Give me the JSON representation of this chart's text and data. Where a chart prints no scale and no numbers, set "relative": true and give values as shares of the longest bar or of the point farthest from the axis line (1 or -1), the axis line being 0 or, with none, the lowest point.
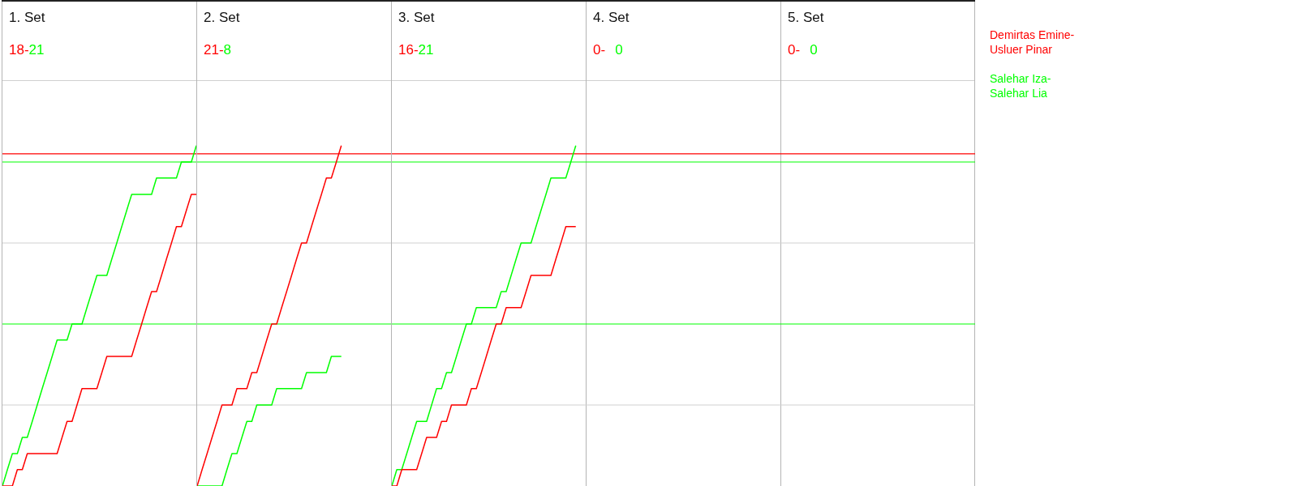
{
  "chart_data": [
    {
      "type": "line",
      "title": "1. Set",
      "annotations": [
        "18-",
        "21"
      ],
      "relative": true,
      "marker": "none",
      "categories": [
        null,
        null,
        null,
        null,
        null,
        null,
        null,
        null,
        null,
        null,
        null,
        null,
        null,
        null,
        null,
        null,
        null,
        null,
        null,
        null,
        null,
        null,
        null,
        null,
        null,
        null,
        null,
        null,
        null,
        null,
        null,
        null,
        null,
        null,
        null,
        null,
        null,
        null,
        null,
        null
      ],
      "series": [
        {
          "name": "Demirtas Emine-Usluer Pinar",
          "color": "#ff0000",
          "values": [
            0,
            0,
            0,
            0.048,
            0.048,
            0.095,
            0.095,
            0.095,
            0.095,
            0.095,
            0.095,
            0.095,
            0.143,
            0.19,
            0.19,
            0.238,
            0.286,
            0.286,
            0.286,
            0.286,
            0.333,
            0.381,
            0.381,
            0.381,
            0.381,
            0.381,
            0.381,
            0.429,
            0.476,
            0.524,
            0.571,
            0.571,
            0.619,
            0.667,
            0.714,
            0.762,
            0.762,
            0.81,
            0.857,
            0.857
          ]
        },
        {
          "name": "Salehar Iza-Salehar Lia",
          "color": "#00ff00",
          "values": [
            0,
            0.048,
            0.095,
            0.095,
            0.143,
            0.143,
            0.19,
            0.238,
            0.286,
            0.333,
            0.381,
            0.429,
            0.429,
            0.429,
            0.476,
            0.476,
            0.476,
            0.524,
            0.571,
            0.619,
            0.619,
            0.619,
            0.667,
            0.714,
            0.762,
            0.81,
            0.857,
            0.857,
            0.857,
            0.857,
            0.857,
            0.905,
            0.905,
            0.905,
            0.905,
            0.905,
            0.952,
            0.952,
            0.952,
            1
          ]
        }
      ],
      "ref_lines": [
        {
          "axis": "y",
          "value": 0.976,
          "color": "#ff0000"
        },
        {
          "axis": "y",
          "value": 0.952,
          "color": "#00ff00"
        },
        {
          "axis": "y",
          "value": 0.476,
          "color": "#00ff00"
        },
        {
          "axis": "y",
          "value": 0.238,
          "color": "#d0d0d0"
        },
        {
          "axis": "y",
          "value": 0.714,
          "color": "#d0d0d0"
        }
      ]
    },
    {
      "type": "line",
      "title": "2. Set",
      "annotations": [
        "21-",
        "8"
      ],
      "relative": true,
      "marker": "none",
      "categories": [
        null,
        null,
        null,
        null,
        null,
        null,
        null,
        null,
        null,
        null,
        null,
        null,
        null,
        null,
        null,
        null,
        null,
        null,
        null,
        null,
        null,
        null,
        null,
        null,
        null,
        null,
        null,
        null,
        null,
        null,
        null,
        null,
        null,
        null,
        null,
        null,
        null,
        null,
        null,
        null
      ],
      "series": [
        {
          "color": "#ff0000",
          "values": [
            0,
            0.048,
            0.095,
            0.143,
            0.19,
            0.238,
            0.238,
            0.238,
            0.286,
            0.286,
            0.286,
            0.333,
            0.333,
            0.381,
            0.429,
            0.476,
            0.476,
            0.524,
            0.571,
            0.619,
            0.667,
            0.714,
            0.714,
            0.762,
            0.81,
            0.857,
            0.905,
            0.905,
            0.952,
            1,
            null,
            null,
            null,
            null,
            null,
            null,
            null,
            null,
            null,
            null
          ]
        },
        {
          "color": "#00ff00",
          "values": [
            0,
            0,
            0,
            0,
            0,
            0,
            0.048,
            0.095,
            0.095,
            0.143,
            0.19,
            0.19,
            0.238,
            0.238,
            0.238,
            0.238,
            0.286,
            0.286,
            0.286,
            0.286,
            0.286,
            0.286,
            0.333,
            0.333,
            0.333,
            0.333,
            0.333,
            0.381,
            0.381,
            0.381,
            null,
            null,
            null,
            null,
            null,
            null,
            null,
            null,
            null,
            null
          ]
        }
      ],
      "ref_lines": [
        {
          "axis": "y",
          "value": 0.976,
          "color": "#ff0000"
        },
        {
          "axis": "y",
          "value": 0.952,
          "color": "#00ff00"
        },
        {
          "axis": "y",
          "value": 0.476,
          "color": "#00ff00"
        },
        {
          "axis": "y",
          "value": 0.238,
          "color": "#d0d0d0"
        },
        {
          "axis": "y",
          "value": 0.714,
          "color": "#d0d0d0"
        }
      ]
    },
    {
      "type": "line",
      "title": "3. Set",
      "annotations": [
        "16-",
        "21"
      ],
      "relative": true,
      "marker": "none",
      "categories": [
        null,
        null,
        null,
        null,
        null,
        null,
        null,
        null,
        null,
        null,
        null,
        null,
        null,
        null,
        null,
        null,
        null,
        null,
        null,
        null,
        null,
        null,
        null,
        null,
        null,
        null,
        null,
        null,
        null,
        null,
        null,
        null,
        null,
        null,
        null,
        null,
        null,
        null,
        null,
        null
      ],
      "series": [
        {
          "color": "#ff0000",
          "values": [
            0,
            0,
            0.048,
            0.048,
            0.048,
            0.048,
            0.095,
            0.143,
            0.143,
            0.143,
            0.19,
            0.19,
            0.238,
            0.238,
            0.238,
            0.238,
            0.286,
            0.286,
            0.333,
            0.381,
            0.429,
            0.476,
            0.476,
            0.524,
            0.524,
            0.524,
            0.524,
            0.571,
            0.619,
            0.619,
            0.619,
            0.619,
            0.619,
            0.667,
            0.714,
            0.762,
            0.762,
            0.762,
            null,
            null
          ]
        },
        {
          "color": "#00ff00",
          "values": [
            0,
            0.048,
            0.048,
            0.095,
            0.143,
            0.19,
            0.19,
            0.19,
            0.238,
            0.286,
            0.286,
            0.333,
            0.333,
            0.381,
            0.429,
            0.476,
            0.476,
            0.524,
            0.524,
            0.524,
            0.524,
            0.524,
            0.571,
            0.571,
            0.619,
            0.667,
            0.714,
            0.714,
            0.714,
            0.762,
            0.81,
            0.857,
            0.905,
            0.905,
            0.905,
            0.905,
            0.952,
            1,
            null,
            null
          ]
        }
      ],
      "ref_lines": [
        {
          "axis": "y",
          "value": 0.976,
          "color": "#ff0000"
        },
        {
          "axis": "y",
          "value": 0.952,
          "color": "#00ff00"
        },
        {
          "axis": "y",
          "value": 0.476,
          "color": "#00ff00"
        },
        {
          "axis": "y",
          "value": 0.238,
          "color": "#d0d0d0"
        },
        {
          "axis": "y",
          "value": 0.714,
          "color": "#d0d0d0"
        }
      ]
    },
    {
      "type": "other",
      "title": "4. Set",
      "annotations": [
        "0-",
        "0"
      ]
    },
    {
      "type": "other",
      "title": "5. Set",
      "annotations": [
        "0-",
        "0"
      ]
    }
  ]
}
